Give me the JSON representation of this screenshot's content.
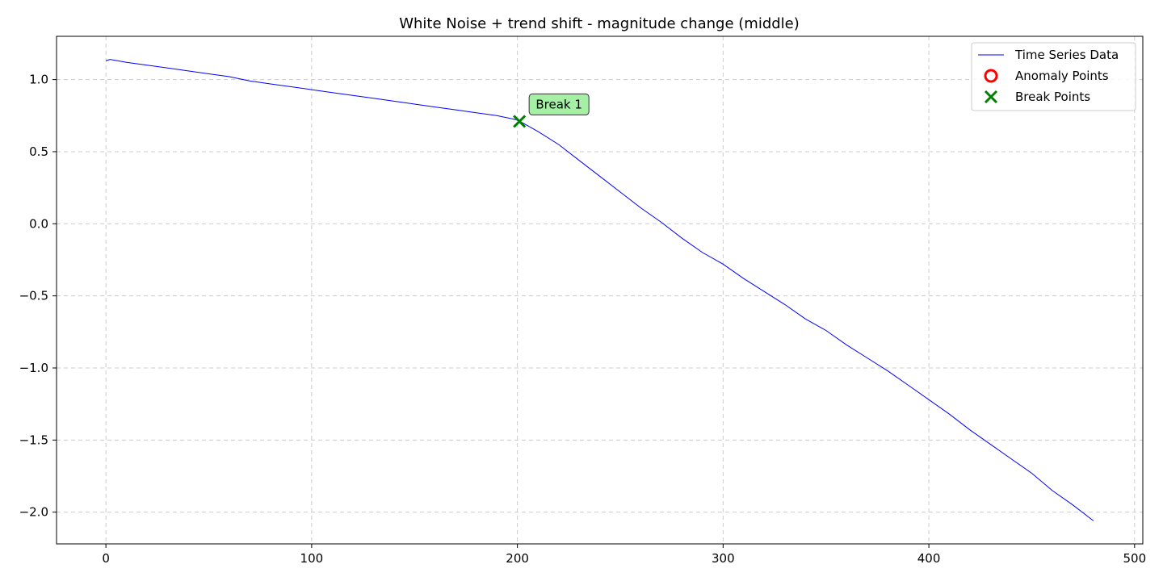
{
  "chart_data": {
    "type": "line",
    "title": "White Noise + trend shift - magnitude change (middle)",
    "xlabel": "",
    "ylabel": "",
    "xlim": [
      -24,
      504
    ],
    "ylim": [
      -2.22,
      1.3
    ],
    "xticks": [
      0,
      100,
      200,
      300,
      400,
      500
    ],
    "xtick_labels": [
      "0",
      "100",
      "200",
      "300",
      "400",
      "500"
    ],
    "yticks": [
      1.0,
      0.5,
      0.0,
      -0.5,
      -1.0,
      -1.5,
      -2.0
    ],
    "ytick_labels": [
      "1.0",
      "0.5",
      "0.0",
      "−0.5",
      "−1.0",
      "−1.5",
      "−2.0"
    ],
    "grid": true,
    "legend_position": "top-right",
    "series": [
      {
        "name": "Time Series Data",
        "color": "#0000ff",
        "x": [
          0,
          2,
          10,
          20,
          30,
          40,
          50,
          60,
          70,
          80,
          90,
          100,
          110,
          120,
          130,
          140,
          150,
          160,
          170,
          180,
          190,
          200,
          210,
          220,
          230,
          240,
          250,
          260,
          270,
          280,
          290,
          300,
          310,
          320,
          330,
          340,
          350,
          360,
          370,
          380,
          390,
          400,
          410,
          420,
          430,
          440,
          450,
          460,
          470,
          480
        ],
        "y": [
          1.13,
          1.14,
          1.12,
          1.1,
          1.08,
          1.06,
          1.04,
          1.02,
          0.99,
          0.97,
          0.95,
          0.93,
          0.91,
          0.89,
          0.87,
          0.85,
          0.83,
          0.81,
          0.79,
          0.77,
          0.75,
          0.72,
          0.64,
          0.55,
          0.44,
          0.33,
          0.22,
          0.11,
          0.01,
          -0.1,
          -0.2,
          -0.28,
          -0.38,
          -0.47,
          -0.56,
          -0.66,
          -0.74,
          -0.84,
          -0.93,
          -1.02,
          -1.12,
          -1.22,
          -1.32,
          -1.43,
          -1.53,
          -1.63,
          -1.73,
          -1.85,
          -1.95,
          -2.06
        ]
      }
    ],
    "anomaly_points": {
      "name": "Anomaly Points",
      "color": "#ff0000",
      "points": []
    },
    "break_points": {
      "name": "Break Points",
      "color": "#008000",
      "points": [
        {
          "x": 201,
          "y": 0.71
        }
      ]
    },
    "annotations": [
      {
        "text": "Break 1",
        "x": 201,
        "y": 0.71,
        "bg": "#a5f0a5"
      }
    ]
  }
}
